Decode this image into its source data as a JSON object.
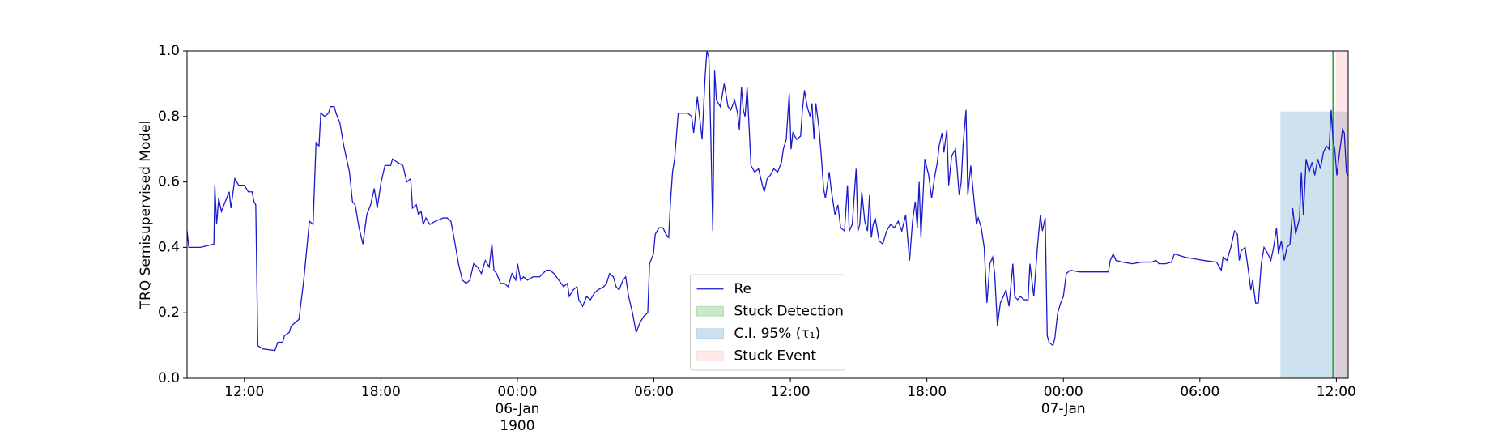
{
  "chart_data": {
    "type": "line",
    "ylabel": "TRQ Semisupervised Model",
    "xlim": [
      9.48,
      60.52
    ],
    "ylim": [
      0,
      1
    ],
    "xticks": [
      {
        "value": 12,
        "label": "12:00"
      },
      {
        "value": 18,
        "label": "18:00"
      },
      {
        "value": 24,
        "label": "00:00\n06-Jan\n1900"
      },
      {
        "value": 30,
        "label": "06:00"
      },
      {
        "value": 36,
        "label": "12:00"
      },
      {
        "value": 42,
        "label": "18:00"
      },
      {
        "value": 48,
        "label": "00:00\n07-Jan"
      },
      {
        "value": 54,
        "label": "06:00"
      },
      {
        "value": 60,
        "label": "12:00"
      }
    ],
    "yticks": [
      {
        "value": 0,
        "label": "0.0"
      },
      {
        "value": 0.2,
        "label": "0.2"
      },
      {
        "value": 0.4,
        "label": "0.4"
      },
      {
        "value": 0.6,
        "label": "0.6"
      },
      {
        "value": 0.8,
        "label": "0.8"
      },
      {
        "value": 1,
        "label": "1.0"
      }
    ],
    "legend": "lower center",
    "series": [
      {
        "name": "Re",
        "color": "#1a1acc",
        "x": [
          9.48,
          9.56,
          10.07,
          10.66,
          10.7,
          10.78,
          10.87,
          10.99,
          11.16,
          11.33,
          11.41,
          11.58,
          11.75,
          12.0,
          12.17,
          12.34,
          12.42,
          12.5,
          12.59,
          12.8,
          13.34,
          13.47,
          13.68,
          13.76,
          13.97,
          14.06,
          14.4,
          14.61,
          14.86,
          15.02,
          15.15,
          15.28,
          15.36,
          15.53,
          15.7,
          15.78,
          15.95,
          16.03,
          16.2,
          16.37,
          16.62,
          16.75,
          16.87,
          17.04,
          17.21,
          17.38,
          17.55,
          17.71,
          17.84,
          18.01,
          18.18,
          18.43,
          18.51,
          18.72,
          18.97,
          19.14,
          19.31,
          19.39,
          19.56,
          19.65,
          19.77,
          19.86,
          19.98,
          20.15,
          20.4,
          20.74,
          20.91,
          21.08,
          21.24,
          21.41,
          21.58,
          21.75,
          21.91,
          22.08,
          22.25,
          22.42,
          22.59,
          22.76,
          22.88,
          22.97,
          23.09,
          23.26,
          23.43,
          23.59,
          23.76,
          23.93,
          24.01,
          24.14,
          24.27,
          24.44,
          24.69,
          24.98,
          25.11,
          25.28,
          25.44,
          25.61,
          25.82,
          26.03,
          26.2,
          26.28,
          26.45,
          26.62,
          26.7,
          26.87,
          27.04,
          27.21,
          27.38,
          27.54,
          27.8,
          27.92,
          28.05,
          28.22,
          28.34,
          28.47,
          28.64,
          28.76,
          28.89,
          29.06,
          29.22,
          29.39,
          29.56,
          29.73,
          29.81,
          29.98,
          30.06,
          30.23,
          30.4,
          30.53,
          30.65,
          30.74,
          30.82,
          30.91,
          31.07,
          31.49,
          31.66,
          31.75,
          31.91,
          32.04,
          32.12,
          32.25,
          32.33,
          32.42,
          32.5,
          32.59,
          32.67,
          32.75,
          32.92,
          33.09,
          33.26,
          33.38,
          33.55,
          33.68,
          33.76,
          33.85,
          33.93,
          34.01,
          34.1,
          34.27,
          34.43,
          34.6,
          34.77,
          34.85,
          34.98,
          35.11,
          35.27,
          35.44,
          35.61,
          35.69,
          35.82,
          35.95,
          36.03,
          36.11,
          36.28,
          36.45,
          36.53,
          36.62,
          36.74,
          36.87,
          36.95,
          37.04,
          37.12,
          37.25,
          37.37,
          37.46,
          37.54,
          37.71,
          37.79,
          37.96,
          38.09,
          38.21,
          38.38,
          38.51,
          38.59,
          38.72,
          38.89,
          38.97,
          39.05,
          39.14,
          39.27,
          39.39,
          39.48,
          39.56,
          39.64,
          39.73,
          39.9,
          40.06,
          40.23,
          40.4,
          40.57,
          40.74,
          40.9,
          41.07,
          41.24,
          41.37,
          41.49,
          41.58,
          41.66,
          41.74,
          41.91,
          42.08,
          42.21,
          42.33,
          42.46,
          42.54,
          42.67,
          42.75,
          42.88,
          42.96,
          43.09,
          43.26,
          43.42,
          43.51,
          43.59,
          43.72,
          43.8,
          43.93,
          44.01,
          44.18,
          44.26,
          44.39,
          44.52,
          44.64,
          44.77,
          44.89,
          44.98,
          45.1,
          45.23,
          45.36,
          45.48,
          45.61,
          45.69,
          45.78,
          45.86,
          45.99,
          46.11,
          46.28,
          46.45,
          46.53,
          46.7,
          46.87,
          46.99,
          47.08,
          47.2,
          47.29,
          47.37,
          47.54,
          47.62,
          47.75,
          47.88,
          48.0,
          48.13,
          48.3,
          48.72,
          49.14,
          49.98,
          50.06,
          50.19,
          50.31,
          50.61,
          51.03,
          51.45,
          51.87,
          52.08,
          52.2,
          52.5,
          52.75,
          52.88,
          53.34,
          53.76,
          54.18,
          54.73,
          54.94,
          55.02,
          55.19,
          55.36,
          55.52,
          55.65,
          55.73,
          55.82,
          55.99,
          56.15,
          56.24,
          56.32,
          56.45,
          56.57,
          56.7,
          56.82,
          56.99,
          57.12,
          57.24,
          57.37,
          57.45,
          57.58,
          57.71,
          57.83,
          57.96,
          58.08,
          58.21,
          58.38,
          58.46,
          58.55,
          58.67,
          58.8,
          58.93,
          59.05,
          59.18,
          59.3,
          59.43,
          59.56,
          59.68,
          59.77,
          59.85,
          59.93,
          60.02,
          60.14,
          60.27,
          60.35,
          60.44,
          60.52
        ],
        "values": [
          0.45,
          0.4,
          0.4,
          0.41,
          0.59,
          0.47,
          0.55,
          0.51,
          0.54,
          0.57,
          0.52,
          0.61,
          0.59,
          0.59,
          0.57,
          0.57,
          0.54,
          0.53,
          0.1,
          0.09,
          0.085,
          0.11,
          0.11,
          0.13,
          0.14,
          0.16,
          0.18,
          0.3,
          0.48,
          0.47,
          0.72,
          0.71,
          0.81,
          0.8,
          0.81,
          0.83,
          0.83,
          0.81,
          0.78,
          0.71,
          0.63,
          0.54,
          0.53,
          0.46,
          0.41,
          0.5,
          0.53,
          0.58,
          0.52,
          0.6,
          0.65,
          0.65,
          0.67,
          0.66,
          0.65,
          0.6,
          0.61,
          0.52,
          0.53,
          0.5,
          0.51,
          0.47,
          0.49,
          0.47,
          0.48,
          0.49,
          0.49,
          0.48,
          0.42,
          0.35,
          0.3,
          0.29,
          0.3,
          0.35,
          0.34,
          0.32,
          0.36,
          0.34,
          0.41,
          0.33,
          0.32,
          0.29,
          0.29,
          0.28,
          0.32,
          0.3,
          0.35,
          0.3,
          0.31,
          0.3,
          0.31,
          0.31,
          0.32,
          0.33,
          0.33,
          0.32,
          0.3,
          0.28,
          0.29,
          0.25,
          0.27,
          0.28,
          0.24,
          0.22,
          0.25,
          0.24,
          0.26,
          0.27,
          0.28,
          0.29,
          0.32,
          0.31,
          0.28,
          0.27,
          0.3,
          0.31,
          0.25,
          0.2,
          0.14,
          0.17,
          0.19,
          0.2,
          0.35,
          0.38,
          0.44,
          0.46,
          0.46,
          0.44,
          0.43,
          0.55,
          0.63,
          0.67,
          0.81,
          0.81,
          0.8,
          0.75,
          0.86,
          0.78,
          0.73,
          0.92,
          1.0,
          0.98,
          0.75,
          0.45,
          0.94,
          0.85,
          0.83,
          0.9,
          0.83,
          0.82,
          0.85,
          0.81,
          0.76,
          0.89,
          0.82,
          0.8,
          0.89,
          0.65,
          0.63,
          0.64,
          0.59,
          0.57,
          0.61,
          0.62,
          0.64,
          0.63,
          0.66,
          0.7,
          0.73,
          0.87,
          0.7,
          0.75,
          0.73,
          0.74,
          0.82,
          0.88,
          0.83,
          0.8,
          0.84,
          0.73,
          0.84,
          0.77,
          0.67,
          0.58,
          0.55,
          0.63,
          0.58,
          0.5,
          0.53,
          0.46,
          0.45,
          0.59,
          0.45,
          0.47,
          0.64,
          0.45,
          0.47,
          0.57,
          0.48,
          0.45,
          0.56,
          0.43,
          0.47,
          0.49,
          0.42,
          0.41,
          0.45,
          0.47,
          0.46,
          0.48,
          0.45,
          0.5,
          0.36,
          0.48,
          0.54,
          0.46,
          0.6,
          0.43,
          0.67,
          0.62,
          0.55,
          0.61,
          0.66,
          0.71,
          0.75,
          0.69,
          0.76,
          0.59,
          0.68,
          0.7,
          0.56,
          0.6,
          0.71,
          0.82,
          0.56,
          0.65,
          0.59,
          0.47,
          0.49,
          0.46,
          0.4,
          0.23,
          0.35,
          0.37,
          0.32,
          0.16,
          0.23,
          0.25,
          0.27,
          0.22,
          0.28,
          0.35,
          0.25,
          0.24,
          0.25,
          0.24,
          0.24,
          0.35,
          0.25,
          0.41,
          0.5,
          0.45,
          0.49,
          0.13,
          0.11,
          0.1,
          0.12,
          0.2,
          0.23,
          0.25,
          0.32,
          0.33,
          0.325,
          0.325,
          0.325,
          0.36,
          0.38,
          0.36,
          0.355,
          0.35,
          0.355,
          0.355,
          0.36,
          0.35,
          0.35,
          0.355,
          0.38,
          0.37,
          0.365,
          0.36,
          0.355,
          0.33,
          0.37,
          0.36,
          0.4,
          0.45,
          0.44,
          0.36,
          0.39,
          0.4,
          0.32,
          0.27,
          0.3,
          0.23,
          0.23,
          0.35,
          0.4,
          0.38,
          0.36,
          0.4,
          0.46,
          0.38,
          0.42,
          0.36,
          0.4,
          0.41,
          0.52,
          0.44,
          0.49,
          0.63,
          0.5,
          0.67,
          0.63,
          0.66,
          0.62,
          0.67,
          0.64,
          0.69,
          0.71,
          0.7,
          0.82,
          0.73,
          0.7,
          0.62,
          0.69,
          0.76,
          0.75,
          0.63,
          0.62
        ]
      }
    ],
    "vlines": [
      {
        "name": "Stuck Detection",
        "color": "#2ca02c",
        "x": 59.85
      }
    ],
    "regions": [
      {
        "name": "C.I. 95% (τ₁)",
        "color": "#1f77b4",
        "xlim": [
          57.54,
          60.52
        ],
        "ylim": [
          0,
          0.815
        ]
      },
      {
        "name": "Stuck Event",
        "color": "#ff9896",
        "xlim": [
          59.97,
          60.52
        ],
        "ylim": [
          0,
          1
        ]
      }
    ]
  }
}
